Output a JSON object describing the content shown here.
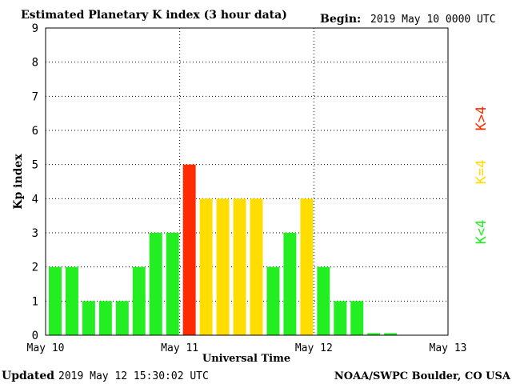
{
  "chart_data": {
    "type": "bar",
    "title": "Estimated Planetary K index (3 hour data)",
    "begin_label": "Begin:",
    "begin_value": "2019 May 10 0000 UTC",
    "xlabel": "Universal Time",
    "ylabel": "Kp index",
    "ylim": [
      0,
      9
    ],
    "yticks": [
      "0",
      "1",
      "2",
      "3",
      "4",
      "5",
      "6",
      "7",
      "8",
      "9"
    ],
    "xticks": [
      "May 10",
      "May 11",
      "May 12",
      "May 13"
    ],
    "grid": true,
    "legend": [
      "K<4",
      "K=4",
      "K>4"
    ],
    "legend_colors": {
      "low": "#22ee22",
      "eq": "#ffdd00",
      "high": "#ff2a00"
    },
    "values": [
      2,
      2,
      1,
      1,
      1,
      2,
      3,
      3,
      5,
      4,
      4,
      4,
      4,
      2,
      3,
      4,
      2,
      1,
      1,
      0.06,
      0.06
    ]
  },
  "footer": {
    "updated_label": "Updated",
    "updated_value": "2019 May 12 15:30:02 UTC",
    "credit": "NOAA/SWPC Boulder, CO USA"
  }
}
